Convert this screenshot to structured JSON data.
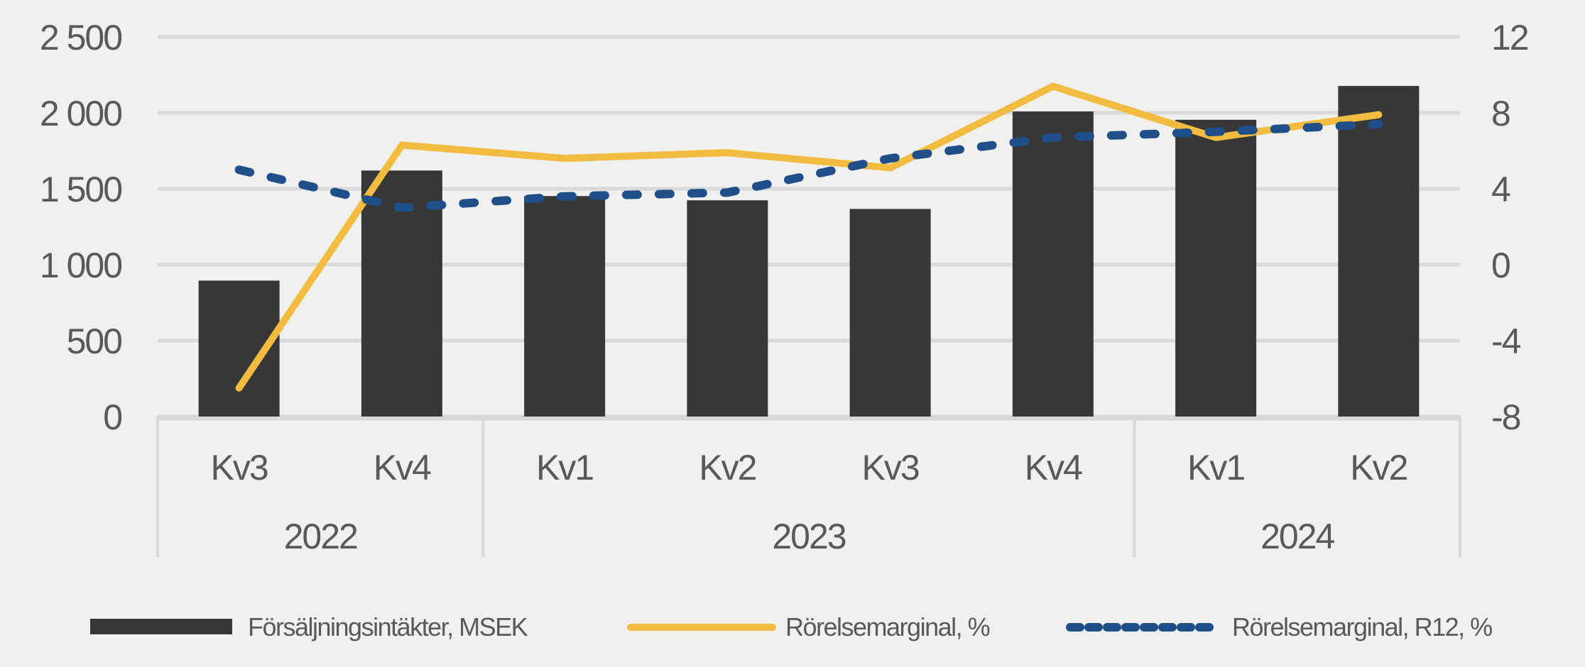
{
  "chart_data": {
    "type": "bar",
    "title": "",
    "categories": [
      "Kv3",
      "Kv4",
      "Kv1",
      "Kv2",
      "Kv3",
      "Kv4",
      "Kv1",
      "Kv2"
    ],
    "groups": [
      {
        "label": "2022",
        "count": 2
      },
      {
        "label": "2023",
        "count": 4
      },
      {
        "label": "2024",
        "count": 2
      }
    ],
    "series": [
      {
        "name": "Försäljningsintäkter, MSEK",
        "kind": "bar",
        "axis": "left",
        "color": "#373737",
        "values": [
          895,
          1620,
          1452,
          1424,
          1367,
          2009,
          1954,
          2177
        ]
      },
      {
        "name": "Rörelsemarginal, %",
        "kind": "line",
        "axis": "right",
        "color": "#f2bc40",
        "values": [
          -6.5,
          6.3,
          5.6,
          5.9,
          5.1,
          9.4,
          6.7,
          7.9
        ]
      },
      {
        "name": "Rörelsemarginal, R12, %",
        "kind": "dashed-line",
        "axis": "right",
        "color": "#1f4e89",
        "values": [
          5.0,
          3.0,
          3.6,
          3.8,
          5.6,
          6.7,
          7.0,
          7.4
        ]
      }
    ],
    "y_left": {
      "ylim": [
        0,
        2500
      ],
      "ticks": [
        0,
        500,
        1000,
        1500,
        2000,
        2500
      ],
      "tick_labels": [
        "0",
        "500",
        "1 000",
        "1 500",
        "2 000",
        "2 500"
      ]
    },
    "y_right": {
      "ylim": [
        -8,
        12
      ],
      "ticks": [
        -8,
        -4,
        0,
        4,
        8,
        12
      ],
      "tick_labels": [
        "-8",
        "-4",
        "0",
        "4",
        "8",
        "12"
      ]
    },
    "grid": true,
    "legend": "bottom"
  }
}
